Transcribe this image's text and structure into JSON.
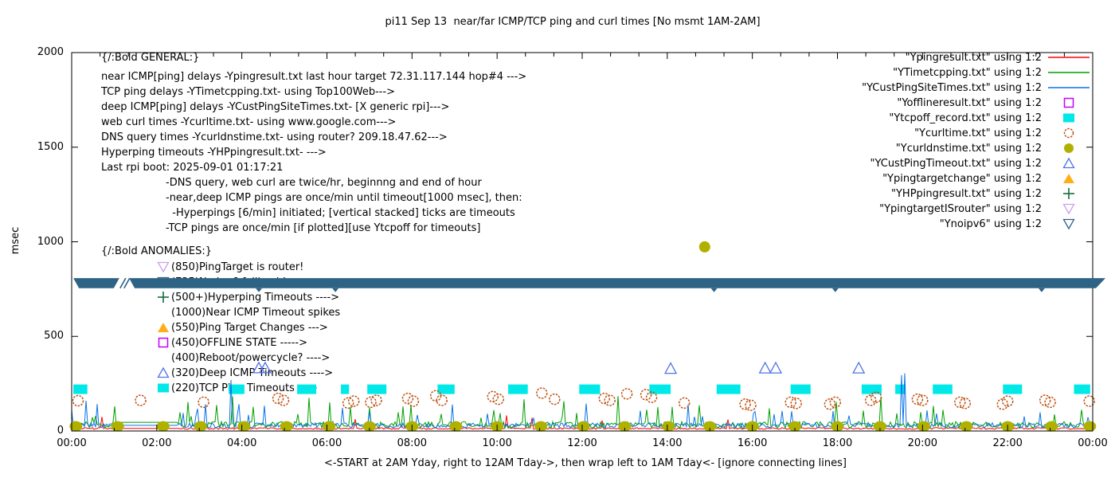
{
  "title": "pi11 Sep 13  near/far ICMP/TCP ping and curl times [No msmt 1AM-2AM]",
  "y_axis": {
    "label": "msec",
    "tick_values": [
      0,
      500,
      1000,
      1500,
      2000
    ]
  },
  "x_axis": {
    "tick_labels": [
      "00:00",
      "02:00",
      "04:00",
      "06:00",
      "08:00",
      "10:00",
      "12:00",
      "14:00",
      "16:00",
      "18:00",
      "20:00",
      "22:00",
      "00:00"
    ],
    "label": "<-START at 2AM Yday, right to 12AM Tday->, then wrap left to 1AM Tday<- [ignore connecting lines]"
  },
  "legend": [
    {
      "label": "\"Ypingresult.txt\" using 1:2",
      "marker": "line",
      "color": "#ff0000"
    },
    {
      "label": "\"YTimetcpping.txt\" using 1:2",
      "marker": "line",
      "color": "#00a000"
    },
    {
      "label": "\"YCustPingSiteTimes.txt\" using 1:2",
      "marker": "line",
      "color": "#0a73e8"
    },
    {
      "label": "\"Yofflineresult.txt\" using 1:2",
      "marker": "square-open",
      "color": "#c400ff"
    },
    {
      "label": "\"Ytcpoff_record.txt\" using 1:2",
      "marker": "square-filled",
      "color": "#00e8e8"
    },
    {
      "label": "\"Ycurltime.txt\" using 1:2",
      "marker": "circle-open",
      "color": "#c05010"
    },
    {
      "label": "\"Ycurldnstime.txt\" using 1:2",
      "marker": "circle-filled",
      "color": "#b0b000"
    },
    {
      "label": "\"YCustPingTimeout.txt\" using 1:2",
      "marker": "triangle-open",
      "color": "#4f73e6"
    },
    {
      "label": "\"Ypingtargetchange\" using 1:2",
      "marker": "triangle-filled",
      "color": "#ffae1a"
    },
    {
      "label": "\"YHPpingresult.txt\" using 1:2",
      "marker": "plus",
      "color": "#116e3c"
    },
    {
      "label": "\"YpingtargetISrouter\" using 1:2",
      "marker": "triangle-down-open",
      "color": "#c9a0ee"
    },
    {
      "label": "\"Ynoipv6\" using 1:2",
      "marker": "triangle-down-open",
      "color": "#2e6385"
    }
  ],
  "annotations": {
    "general_heading": "{/:Bold GENERAL:}",
    "general_lines": [
      "near ICMP[ping] delays -Ypingresult.txt last hour target 72.31.117.144 hop#4 --->",
      "TCP ping delays -YTimetcpping.txt- using Top100Web--->",
      "deep ICMP[ping] delays -YCustPingSiteTimes.txt- [X generic rpi]--->",
      "web curl times -Ycurltime.txt- using www.google.com--->",
      "DNS query times -Ycurldnstime.txt- using router? 209.18.47.62--->",
      "Hyperping timeouts -YHPpingresult.txt- --->",
      "Last rpi boot: 2025-09-01 01:17:21"
    ],
    "notes": [
      "-DNS query, web curl are twice/hr, beginnng and end of hour",
      "-near,deep ICMP pings are once/min until timeout[1000 msec], then:",
      "  -Hyperpings [6/min] initiated; [vertical stacked] ticks are timeouts",
      "-TCP pings are once/min [if plotted][use Ytcpoff for timeouts]"
    ],
    "anomalies_heading": "{/:Bold ANOMALIES:}",
    "anomalies": [
      {
        "marker": "triangle-down-open",
        "color": "#c9a0ee",
        "text": "(850)PingTarget is router!"
      },
      {
        "marker": "triangle-down-open",
        "color": "#2e6385",
        "text": "(725)No ipv6 fallback!",
        "obscured_by_band": true
      },
      {
        "marker": "plus",
        "color": "#116e3c",
        "text": "(500+)Hyperping Timeouts ---->"
      },
      {
        "marker": "none",
        "color": "",
        "text": "(1000)Near ICMP Timeout spikes"
      },
      {
        "marker": "triangle-filled",
        "color": "#ffae1a",
        "text": "(550)Ping Target Changes --->"
      },
      {
        "marker": "square-open",
        "color": "#c400ff",
        "text": "(450)OFFLINE STATE ----->"
      },
      {
        "marker": "none",
        "color": "",
        "text": "(400)Reboot/powercycle? ---->"
      },
      {
        "marker": "triangle-open",
        "color": "#4f73e6",
        "text": "(320)Deep ICMP Timeouts ---->"
      },
      {
        "marker": "square-filled",
        "color": "#00e8e8",
        "text": "(220)TCP Ping Timeouts --->"
      }
    ]
  },
  "chart_data": {
    "type": "line",
    "x_unit": "hours of day (wrapped: starts 2AM yesterday)",
    "y_unit": "msec",
    "x_range": [
      0,
      24
    ],
    "y_range": [
      0,
      2000
    ],
    "grid": false,
    "legend_position": "outside-right-top",
    "no_measurement_window_hours": [
      1.05,
      2.5
    ],
    "series": [
      {
        "name": "Ypingresult.txt (near ICMP ping)",
        "type": "noisy-line",
        "color": "#ff0000",
        "baseline_msec": [
          9,
          18
        ],
        "spike_chance": 0.012,
        "spike_msec": [
          25,
          95
        ],
        "gap_value": 14
      },
      {
        "name": "YTimetcpping.txt (TCP ping)",
        "type": "noisy-line",
        "color": "#00a000",
        "baseline_msec": [
          15,
          50
        ],
        "spike_chance": 0.07,
        "spike_msec": [
          70,
          190
        ],
        "gap_value": 46
      },
      {
        "name": "YCustPingSiteTimes.txt (deep ICMP ping)",
        "type": "noisy-line",
        "color": "#0a73e8",
        "baseline_msec": [
          17,
          43
        ],
        "spike_chance": 0.06,
        "spike_msec": [
          60,
          150
        ],
        "gap_value": 30,
        "tall_spikes": [
          [
            0.33,
            160
          ],
          [
            3.74,
            270
          ],
          [
            19.52,
            295
          ],
          [
            19.6,
            305
          ]
        ]
      },
      {
        "name": "Ytcpoff_record.txt (TCP offline marks)",
        "type": "span-rect",
        "color": "#00e8e8",
        "msec": 220,
        "spans_hours": [
          [
            0.04,
            0.37
          ],
          [
            3.69,
            4.06
          ],
          [
            5.3,
            5.75
          ],
          [
            6.33,
            6.52
          ],
          [
            6.95,
            7.4
          ],
          [
            8.6,
            9.0
          ],
          [
            10.26,
            10.72
          ],
          [
            11.93,
            12.42
          ],
          [
            13.58,
            14.08
          ],
          [
            15.16,
            15.72
          ],
          [
            16.9,
            17.37
          ],
          [
            18.57,
            19.04
          ],
          [
            19.36,
            19.6
          ],
          [
            20.24,
            20.7
          ],
          [
            21.89,
            22.34
          ],
          [
            23.56,
            23.94
          ]
        ]
      },
      {
        "name": "Ycurltime.txt (web curl)",
        "type": "scatter",
        "marker": "circle-open",
        "color": "#c05010",
        "points": [
          [
            0.15,
            160
          ],
          [
            1.62,
            162
          ],
          [
            3.1,
            152
          ],
          [
            4.85,
            172
          ],
          [
            4.98,
            162
          ],
          [
            6.5,
            148
          ],
          [
            6.63,
            158
          ],
          [
            7.03,
            152
          ],
          [
            7.16,
            162
          ],
          [
            7.9,
            172
          ],
          [
            8.03,
            158
          ],
          [
            8.56,
            186
          ],
          [
            8.7,
            162
          ],
          [
            9.9,
            182
          ],
          [
            10.03,
            168
          ],
          [
            11.05,
            200
          ],
          [
            11.35,
            168
          ],
          [
            12.52,
            172
          ],
          [
            12.65,
            162
          ],
          [
            13.05,
            196
          ],
          [
            13.5,
            192
          ],
          [
            13.63,
            178
          ],
          [
            14.4,
            148
          ],
          [
            15.83,
            142
          ],
          [
            15.96,
            136
          ],
          [
            16.9,
            152
          ],
          [
            17.03,
            146
          ],
          [
            17.82,
            142
          ],
          [
            17.95,
            152
          ],
          [
            18.78,
            162
          ],
          [
            18.91,
            178
          ],
          [
            19.88,
            168
          ],
          [
            20.0,
            162
          ],
          [
            20.88,
            152
          ],
          [
            21.0,
            146
          ],
          [
            21.88,
            142
          ],
          [
            22.0,
            158
          ],
          [
            22.88,
            162
          ],
          [
            23.0,
            152
          ],
          [
            23.92,
            158
          ]
        ]
      },
      {
        "name": "Ycurldnstime.txt (DNS query)",
        "type": "scatter",
        "marker": "circle-filled",
        "color": "#b0b000",
        "msec": 25,
        "hours": [
          0.1,
          1.08,
          2.15,
          3.03,
          4.05,
          5.05,
          6.05,
          7.0,
          8.0,
          9.03,
          10.0,
          11.03,
          12.03,
          13.0,
          14.03,
          15.0,
          16.0,
          17.0,
          18.0,
          19.0,
          20.03,
          21.03,
          22.0,
          23.03,
          23.93
        ],
        "outlier": [
          14.88,
          973
        ]
      },
      {
        "name": "YCustPingTimeout.txt (deep ICMP timeout)",
        "type": "scatter",
        "marker": "triangle-open",
        "color": "#4f73e6",
        "points": [
          [
            4.4,
            333
          ],
          [
            4.55,
            333
          ],
          [
            14.08,
            330
          ],
          [
            16.3,
            332
          ],
          [
            16.55,
            332
          ],
          [
            18.5,
            332
          ]
        ]
      },
      {
        "name": "Ynoipv6 (thick band)",
        "type": "band",
        "color": "#2e6385",
        "msec_range": [
          755,
          808
        ],
        "hours_range": [
          0.04,
          24.3
        ],
        "gap_hours": [
          [
            1.12,
            1.35
          ]
        ],
        "tick_hours": [
          4.4,
          6.2,
          15.1,
          17.95,
          22.8
        ]
      }
    ]
  }
}
